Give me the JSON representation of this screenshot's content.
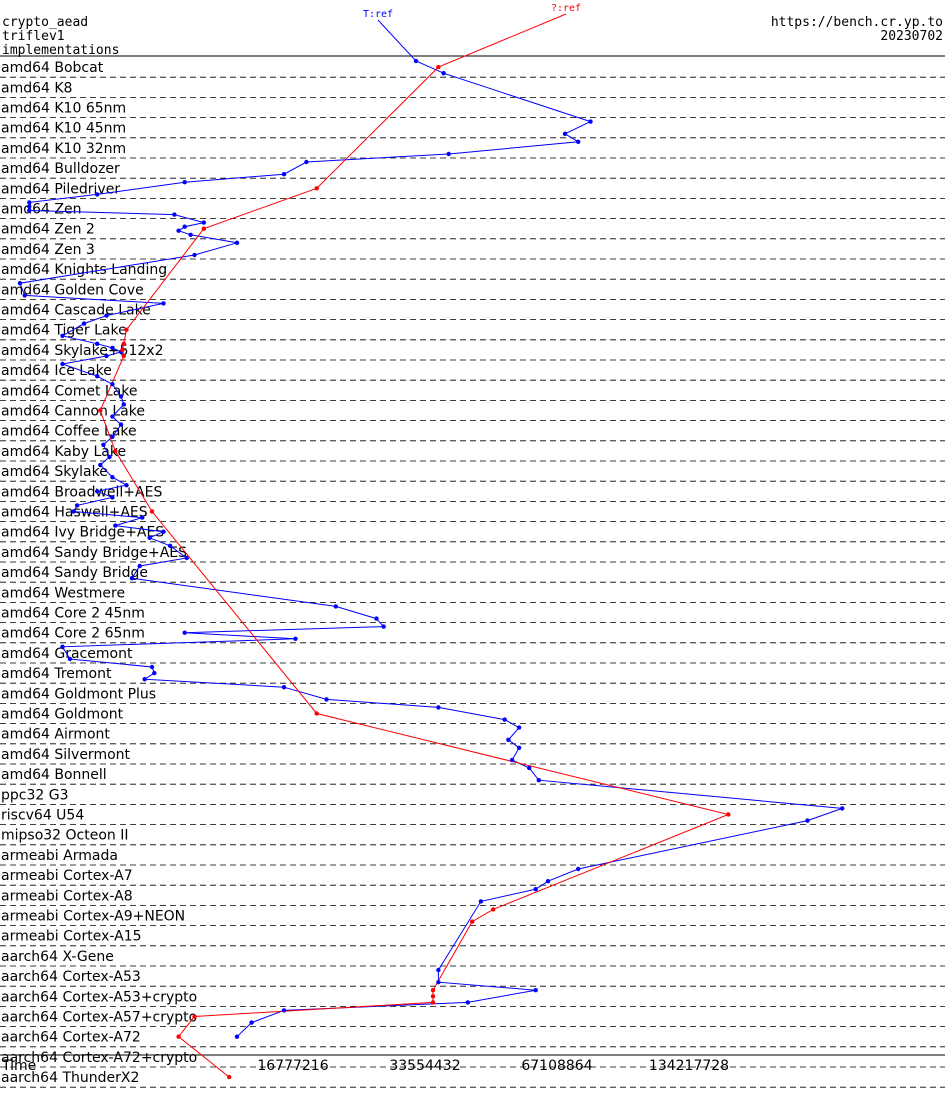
{
  "header": {
    "lines": [
      "crypto_aead",
      "triflev1",
      "implementations"
    ],
    "site": "https://bench.cr.yp.to",
    "date": "20230702"
  },
  "colors": {
    "tref": "#0000ff",
    "qref": "#ff0000",
    "ink": "#000000"
  },
  "chart_data": {
    "type": "line",
    "x_label": "Time",
    "x_scale": "log2",
    "x_ticks": [
      "16777216",
      "33554432",
      "67108864",
      "134217728"
    ],
    "x_range": [
      3500000,
      400000000
    ],
    "series_names": [
      "T:ref",
      "?:ref"
    ],
    "categories": [
      "amd64 Bobcat",
      "amd64 K8",
      "amd64 K10 65nm",
      "amd64 K10 45nm",
      "amd64 K10 32nm",
      "amd64 Bulldozer",
      "amd64 Piledriver",
      "amd64 Zen",
      "amd64 Zen 2",
      "amd64 Zen 3",
      "amd64 Knights Landing",
      "amd64 Golden Cove",
      "amd64 Cascade Lake",
      "amd64 Tiger Lake",
      "amd64 Skylake+512x2",
      "amd64 Ice Lake",
      "amd64 Comet Lake",
      "amd64 Cannon Lake",
      "amd64 Coffee Lake",
      "amd64 Kaby Lake",
      "amd64 Skylake",
      "amd64 Broadwell+AES",
      "amd64 Haswell+AES",
      "amd64 Ivy Bridge+AES",
      "amd64 Sandy Bridge+AES",
      "amd64 Sandy Bridge",
      "amd64 Westmere",
      "amd64 Core 2 45nm",
      "amd64 Core 2 65nm",
      "amd64 Gracemont",
      "amd64 Tremont",
      "amd64 Goldmont Plus",
      "amd64 Goldmont",
      "amd64 Airmont",
      "amd64 Silvermont",
      "amd64 Bonnell",
      "ppc32 G3",
      "riscv64 U54",
      "mipso32 Octeon II",
      "armeabi Armada",
      "armeabi Cortex-A7",
      "armeabi Cortex-A8",
      "armeabi Cortex-A9+NEON",
      "armeabi Cortex-A15",
      "aarch64 X-Gene",
      "aarch64 Cortex-A53",
      "aarch64 Cortex-A53+crypto",
      "aarch64 Cortex-A57+crypto",
      "aarch64 Cortex-A72",
      "aarch64 Cortex-A72+crypto",
      "aarch64 ThunderX2"
    ],
    "series": [
      {
        "name": "T:ref",
        "points": [
          {
            "row": 0,
            "x": 32000000
          },
          {
            "row": 0,
            "x": 37000000
          },
          {
            "row": 3,
            "x": 80000000
          },
          {
            "row": 3,
            "x": 70000000
          },
          {
            "row": 4,
            "x": 75000000
          },
          {
            "row": 4,
            "x": 38000000
          },
          {
            "row": 5,
            "x": 18000000
          },
          {
            "row": 5,
            "x": 16000000
          },
          {
            "row": 6,
            "x": 9500000
          },
          {
            "row": 6,
            "x": 6000000
          },
          {
            "row": 7,
            "x": 4200000
          },
          {
            "row": 7,
            "x": 4200000
          },
          {
            "row": 7,
            "x": 4200000
          },
          {
            "row": 7,
            "x": 9000000
          },
          {
            "row": 8,
            "x": 10500000
          },
          {
            "row": 8,
            "x": 9500000
          },
          {
            "row": 8,
            "x": 9200000
          },
          {
            "row": 8,
            "x": 9800000
          },
          {
            "row": 9,
            "x": 12500000
          },
          {
            "row": 9,
            "x": 10000000
          },
          {
            "row": 11,
            "x": 4000000
          },
          {
            "row": 11,
            "x": 4100000
          },
          {
            "row": 12,
            "x": 8500000
          },
          {
            "row": 12,
            "x": 6300000
          },
          {
            "row": 13,
            "x": 5600000
          },
          {
            "row": 13,
            "x": 5000000
          },
          {
            "row": 14,
            "x": 6000000
          },
          {
            "row": 14,
            "x": 6500000
          },
          {
            "row": 14,
            "x": 6800000
          },
          {
            "row": 14,
            "x": 6300000
          },
          {
            "row": 15,
            "x": 5000000
          },
          {
            "row": 15,
            "x": 6000000
          },
          {
            "row": 16,
            "x": 6500000
          },
          {
            "row": 16,
            "x": 6800000
          },
          {
            "row": 17,
            "x": 6900000
          },
          {
            "row": 17,
            "x": 6500000
          },
          {
            "row": 18,
            "x": 6800000
          },
          {
            "row": 18,
            "x": 6500000
          },
          {
            "row": 19,
            "x": 6200000
          },
          {
            "row": 19,
            "x": 6400000
          },
          {
            "row": 20,
            "x": 6100000
          },
          {
            "row": 20,
            "x": 6500000
          },
          {
            "row": 21,
            "x": 7000000
          },
          {
            "row": 21,
            "x": 6000000
          },
          {
            "row": 21,
            "x": 6500000
          },
          {
            "row": 22,
            "x": 5400000
          },
          {
            "row": 22,
            "x": 5300000
          },
          {
            "row": 22,
            "x": 7600000
          },
          {
            "row": 23,
            "x": 6600000
          },
          {
            "row": 23,
            "x": 8500000
          },
          {
            "row": 23,
            "x": 7900000
          },
          {
            "row": 24,
            "x": 8800000
          },
          {
            "row": 24,
            "x": 9600000
          },
          {
            "row": 25,
            "x": 7500000
          },
          {
            "row": 25,
            "x": 7200000
          },
          {
            "row": 27,
            "x": 21000000
          },
          {
            "row": 27,
            "x": 26000000
          },
          {
            "row": 28,
            "x": 27000000
          },
          {
            "row": 28,
            "x": 9500000
          },
          {
            "row": 28,
            "x": 17000000
          },
          {
            "row": 29,
            "x": 5000000
          },
          {
            "row": 29,
            "x": 5200000
          },
          {
            "row": 30,
            "x": 8000000
          },
          {
            "row": 30,
            "x": 8100000
          },
          {
            "row": 30,
            "x": 7700000
          },
          {
            "row": 31,
            "x": 16000000
          },
          {
            "row": 31,
            "x": 20000000
          },
          {
            "row": 32,
            "x": 36000000
          },
          {
            "row": 32,
            "x": 51000000
          },
          {
            "row": 33,
            "x": 55000000
          },
          {
            "row": 33,
            "x": 52000000
          },
          {
            "row": 34,
            "x": 55000000
          },
          {
            "row": 34,
            "x": 53000000
          },
          {
            "row": 35,
            "x": 58000000
          },
          {
            "row": 35,
            "x": 61000000
          },
          {
            "row": 37,
            "x": 300000000
          },
          {
            "row": 37,
            "x": 250000000
          },
          {
            "row": 40,
            "x": 75000000
          },
          {
            "row": 40,
            "x": 64000000
          },
          {
            "row": 41,
            "x": 60000000
          },
          {
            "row": 41,
            "x": 45000000
          },
          {
            "row": 45,
            "x": 36000000
          },
          {
            "row": 45,
            "x": 36000000
          },
          {
            "row": 46,
            "x": 60000000
          },
          {
            "row": 46,
            "x": 42000000
          },
          {
            "row": 47,
            "x": 16000000
          },
          {
            "row": 47,
            "x": 13500000
          },
          {
            "row": 48,
            "x": 12500000
          }
        ]
      },
      {
        "name": "?:ref",
        "points": [
          {
            "row": 0,
            "x": 36000000
          },
          {
            "row": 6,
            "x": 19000000
          },
          {
            "row": 8,
            "x": 10500000
          },
          {
            "row": 13,
            "x": 7000000
          },
          {
            "row": 14,
            "x": 6900000
          },
          {
            "row": 14,
            "x": 6850000
          },
          {
            "row": 14,
            "x": 6900000
          },
          {
            "row": 17,
            "x": 6100000
          },
          {
            "row": 19,
            "x": 6600000
          },
          {
            "row": 22,
            "x": 8000000
          },
          {
            "row": 32,
            "x": 19000000
          },
          {
            "row": 37,
            "x": 165000000
          },
          {
            "row": 42,
            "x": 48000000
          },
          {
            "row": 42,
            "x": 43000000
          },
          {
            "row": 46,
            "x": 35000000
          },
          {
            "row": 46,
            "x": 35000000
          },
          {
            "row": 46,
            "x": 35000000
          },
          {
            "row": 47,
            "x": 10000000
          },
          {
            "row": 48,
            "x": 9200000
          },
          {
            "row": 50,
            "x": 12000000
          }
        ]
      }
    ]
  }
}
